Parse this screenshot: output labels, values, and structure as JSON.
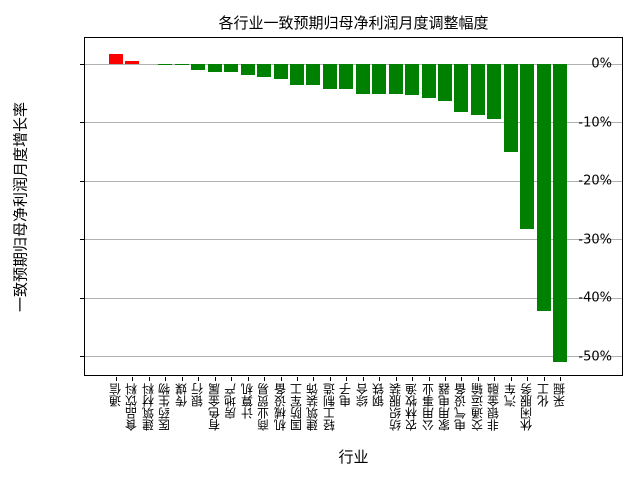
{
  "chart_data": {
    "type": "bar",
    "title": "各行业一致预期归母净利润月度调整幅度",
    "xlabel": "行业",
    "ylabel": "一致预期归母净利润月度增长率",
    "ylim": [
      -53.5,
      4.5
    ],
    "yticks": [
      0,
      -10,
      -20,
      -30,
      -40,
      -50
    ],
    "ytick_labels": [
      "0%",
      "-10%",
      "-20%",
      "-30%",
      "-40%",
      "-50%"
    ],
    "grid": "y",
    "legend": null,
    "colors": {
      "positive": "#ff0000",
      "negative": "#008000",
      "grid": "#b0b0b0"
    },
    "categories": [
      "通信",
      "食品饮料",
      "建筑材料",
      "医药生物",
      "传媒",
      "银行",
      "有色金属",
      "房地产",
      "计算机",
      "商业贸易",
      "机械设备",
      "国防军工",
      "建筑装饰",
      "轻工制造",
      "电子",
      "综合",
      "钢铁",
      "纺织服装",
      "农林牧渔",
      "公用事业",
      "家用电器",
      "电气设备",
      "交通运输",
      "非银金融",
      "汽车",
      "休闲服务",
      "化工",
      "采掘"
    ],
    "values": [
      1.8,
      0.5,
      0.0,
      -0.2,
      -0.2,
      -1.0,
      -1.3,
      -1.3,
      -1.9,
      -2.1,
      -2.5,
      -3.6,
      -3.6,
      -4.3,
      -4.3,
      -5.0,
      -5.0,
      -5.0,
      -5.3,
      -5.8,
      -6.3,
      -8.2,
      -8.7,
      -9.4,
      -15.0,
      -28.2,
      -42.2,
      -50.9
    ]
  }
}
